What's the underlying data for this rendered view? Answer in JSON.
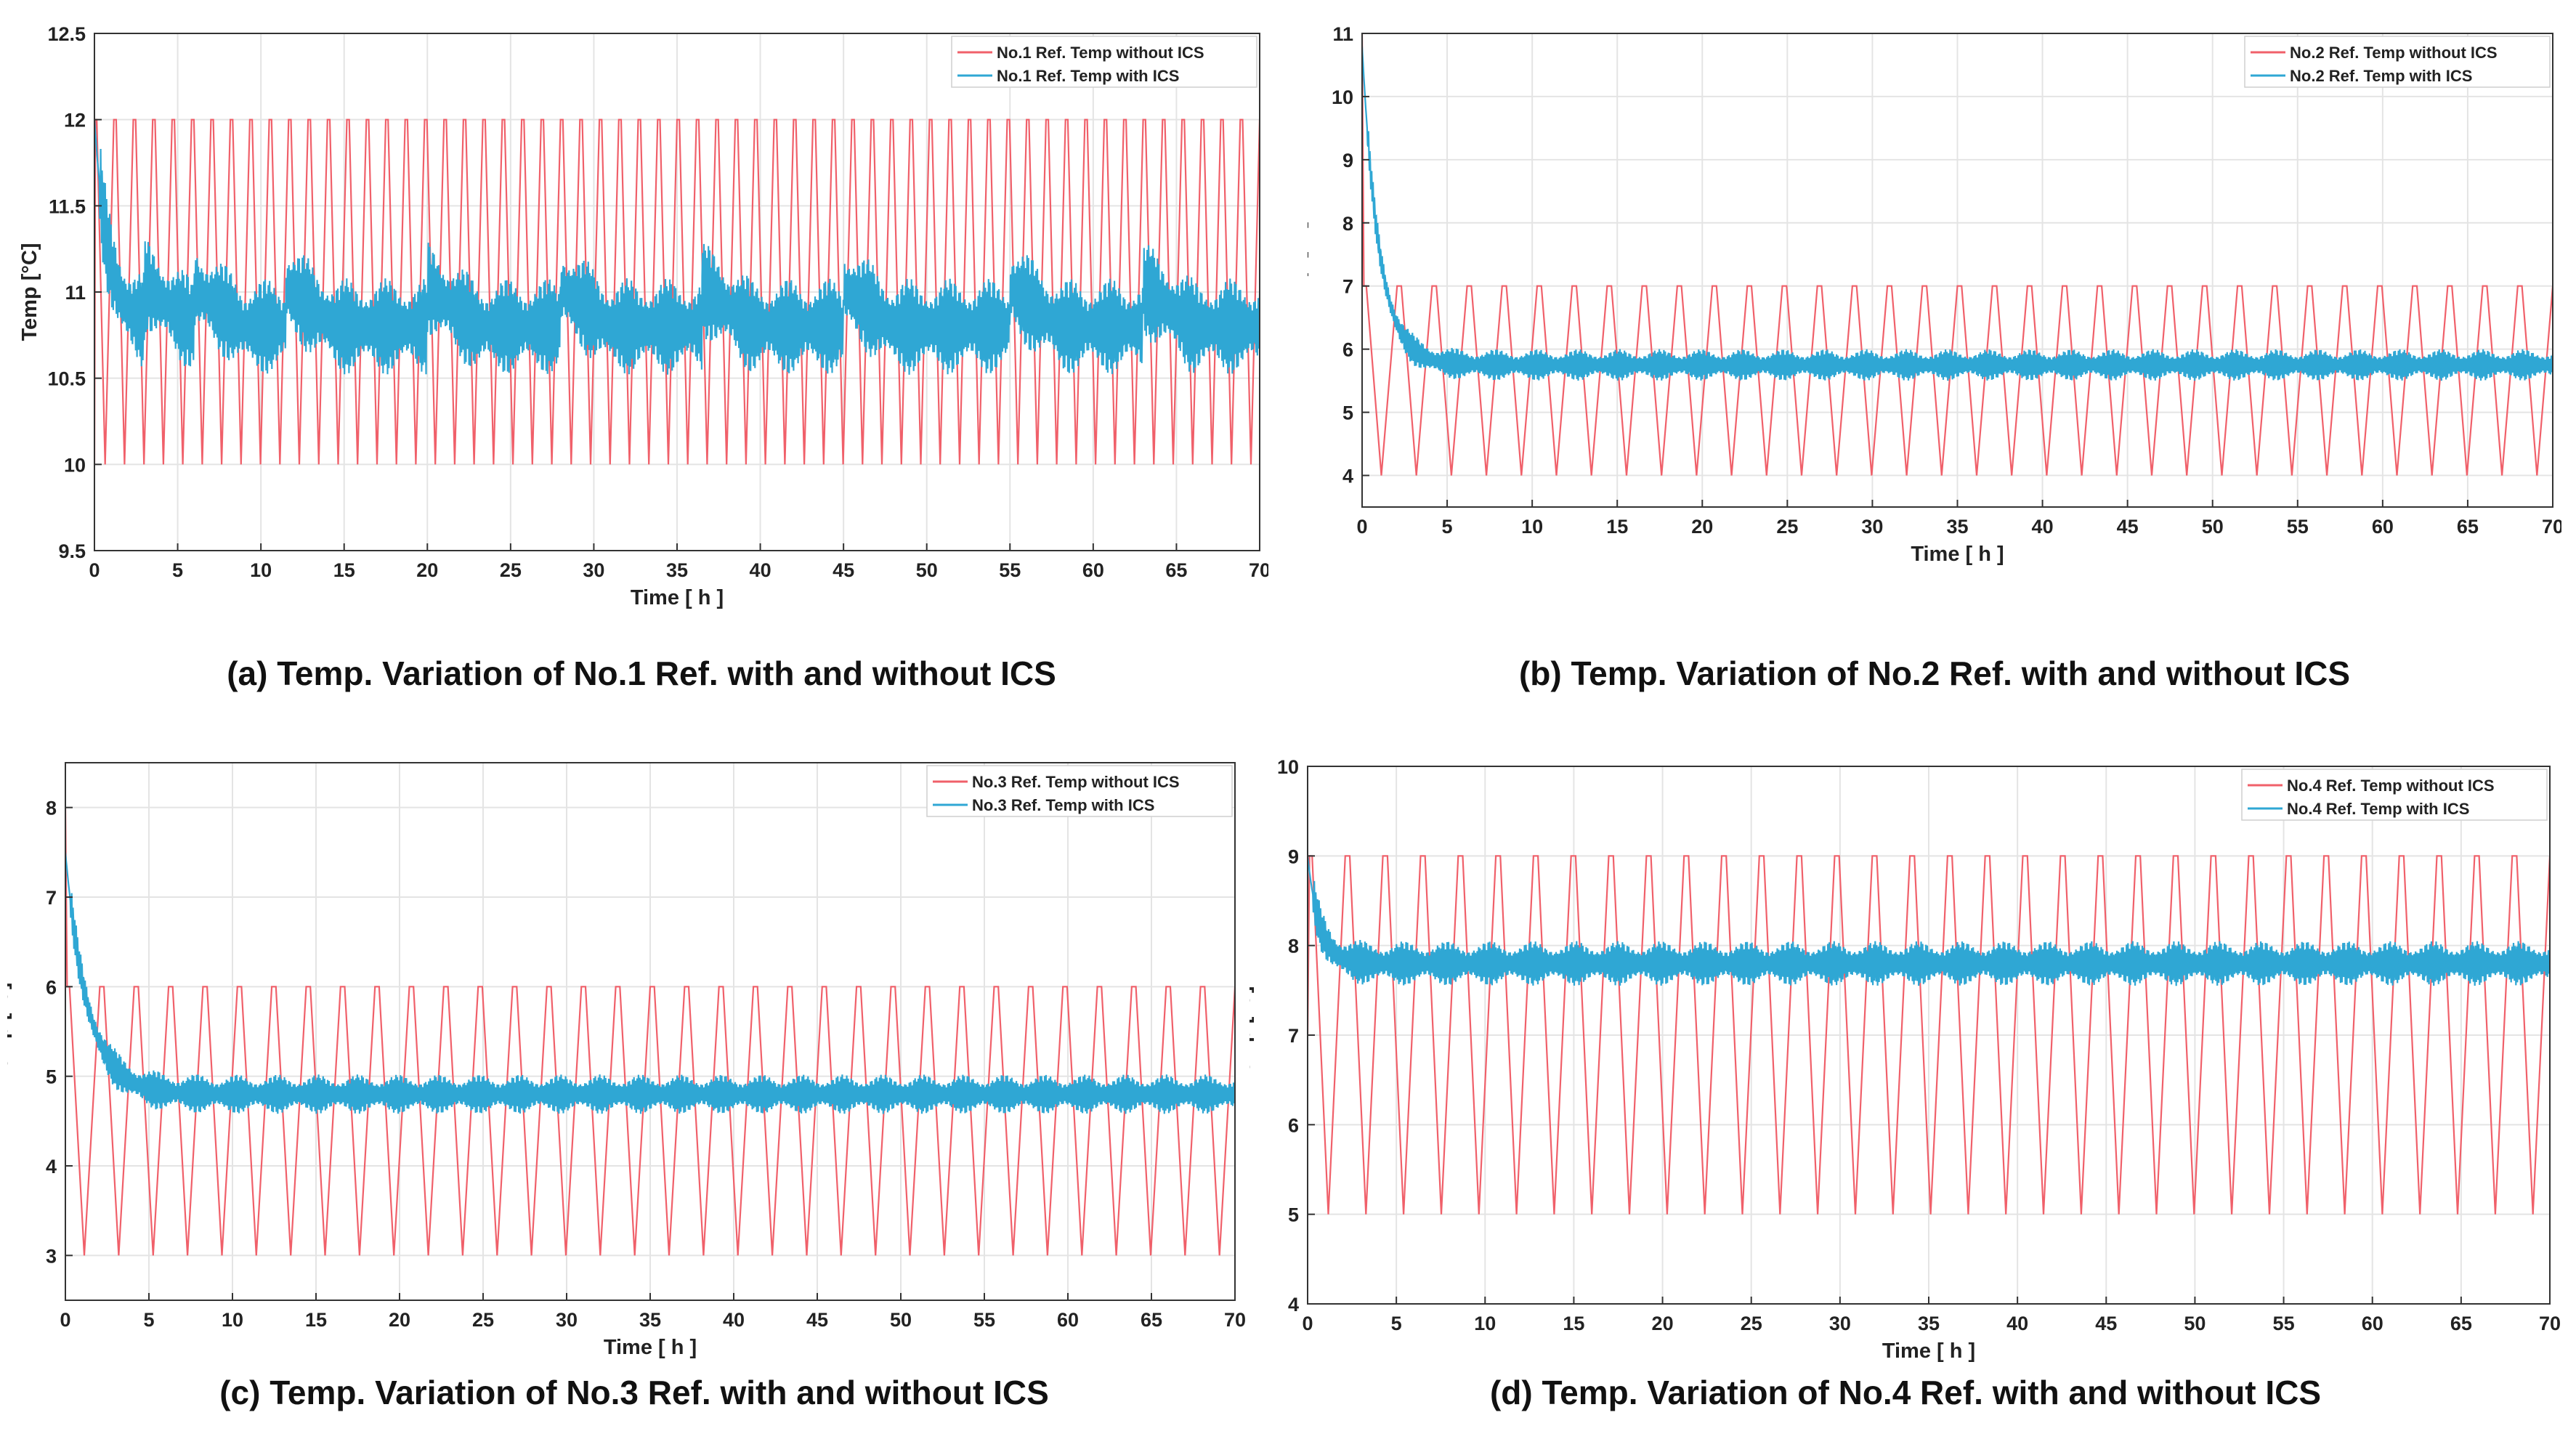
{
  "captions": {
    "a": "(a) Temp. Variation of No.1 Ref. with and without ICS",
    "b": "(b) Temp. Variation of No.2 Ref. with and without ICS",
    "c": "(c) Temp. Variation of No.3 Ref. with and without ICS",
    "d": "(d) Temp. Variation of No.4 Ref. with and without ICS"
  },
  "colors": {
    "without": "#f0606a",
    "with": "#2fa7d4",
    "grid": "#e4e4e4",
    "axis": "#333333"
  },
  "chart_data": [
    {
      "id": "a",
      "type": "line",
      "xlabel": "Time [ h ]",
      "ylabel": "Temp [°C]",
      "xlim": [
        0,
        70
      ],
      "ylim": [
        9.5,
        12.5
      ],
      "xticks": [
        0,
        5,
        10,
        15,
        20,
        25,
        30,
        35,
        40,
        45,
        50,
        55,
        60,
        65,
        70
      ],
      "yticks": [
        9.5,
        10,
        10.5,
        11,
        11.5,
        12,
        12.5
      ],
      "ytick_labels": [
        "9.5",
        "10",
        "10.5",
        "11",
        "11.5",
        "12",
        "12.5"
      ],
      "legend_position": "top-right",
      "series": [
        {
          "name": "No.1 Ref. Temp without ICS",
          "kind": "sawtooth",
          "min": 10,
          "max": 12,
          "cycles": 60,
          "start": 10
        },
        {
          "name": "No.1 Ref. Temp with ICS",
          "kind": "settling",
          "start": 12.0,
          "center": 10.8,
          "amplitude": 0.28,
          "settle_h": 2.5,
          "bump_times": [
            3,
            6,
            11.5,
            20,
            28,
            36.5,
            45,
            55,
            63
          ],
          "bump_size": 0.22
        }
      ]
    },
    {
      "id": "b",
      "type": "line",
      "xlabel": "Time [ h ]",
      "ylabel": "Temp [°C]",
      "xlim": [
        0,
        70
      ],
      "ylim": [
        3.5,
        11
      ],
      "xticks": [
        0,
        5,
        10,
        15,
        20,
        25,
        30,
        35,
        40,
        45,
        50,
        55,
        60,
        65,
        70
      ],
      "yticks": [
        4,
        5,
        6,
        7,
        8,
        9,
        10,
        11
      ],
      "ytick_labels": [
        "4",
        "5",
        "6",
        "7",
        "8",
        "9",
        "10",
        "11"
      ],
      "legend_position": "top-right",
      "series": [
        {
          "name": "No.2 Ref. Temp without ICS",
          "kind": "sawtooth",
          "min": 4,
          "max": 7,
          "cycles": 34,
          "start": 11
        },
        {
          "name": "No.2 Ref. Temp with ICS",
          "kind": "settling",
          "start": 10.8,
          "center": 5.75,
          "amplitude": 0.25,
          "settle_h": 3,
          "bump_times": [],
          "bump_size": 0
        }
      ]
    },
    {
      "id": "c",
      "type": "line",
      "xlabel": "Time [ h ]",
      "ylabel": "Temp [°C]",
      "xlim": [
        0,
        70
      ],
      "ylim": [
        2.5,
        8.5
      ],
      "xticks": [
        0,
        5,
        10,
        15,
        20,
        25,
        30,
        35,
        40,
        45,
        50,
        55,
        60,
        65,
        70
      ],
      "yticks": [
        3,
        4,
        5,
        6,
        7,
        8
      ],
      "ytick_labels": [
        "3",
        "4",
        "5",
        "6",
        "7",
        "8"
      ],
      "legend_position": "top-right",
      "series": [
        {
          "name": "No.3 Ref. Temp without ICS",
          "kind": "sawtooth",
          "min": 3,
          "max": 6,
          "cycles": 34,
          "start": 8
        },
        {
          "name": "No.3 Ref. Temp with ICS",
          "kind": "settling",
          "start": 7.5,
          "center": 4.8,
          "amplitude": 0.22,
          "settle_h": 4,
          "bump_times": [],
          "bump_size": 0
        }
      ]
    },
    {
      "id": "d",
      "type": "line",
      "xlabel": "Time [ h ]",
      "ylabel": "Temp [°C]",
      "xlim": [
        0,
        70
      ],
      "ylim": [
        4,
        10
      ],
      "xticks": [
        0,
        5,
        10,
        15,
        20,
        25,
        30,
        35,
        40,
        45,
        50,
        55,
        60,
        65,
        70
      ],
      "yticks": [
        4,
        5,
        6,
        7,
        8,
        9,
        10
      ],
      "ytick_labels": [
        "4",
        "5",
        "6",
        "7",
        "8",
        "9",
        "10"
      ],
      "legend_position": "top-right",
      "series": [
        {
          "name": "No.4 Ref. Temp without ICS",
          "kind": "sawtooth",
          "min": 5,
          "max": 9,
          "cycles": 33,
          "start": 7
        },
        {
          "name": "No.4 Ref. Temp with ICS",
          "kind": "settling",
          "start": 9.0,
          "center": 7.8,
          "amplitude": 0.25,
          "settle_h": 2,
          "bump_times": [],
          "bump_size": 0
        }
      ]
    }
  ]
}
